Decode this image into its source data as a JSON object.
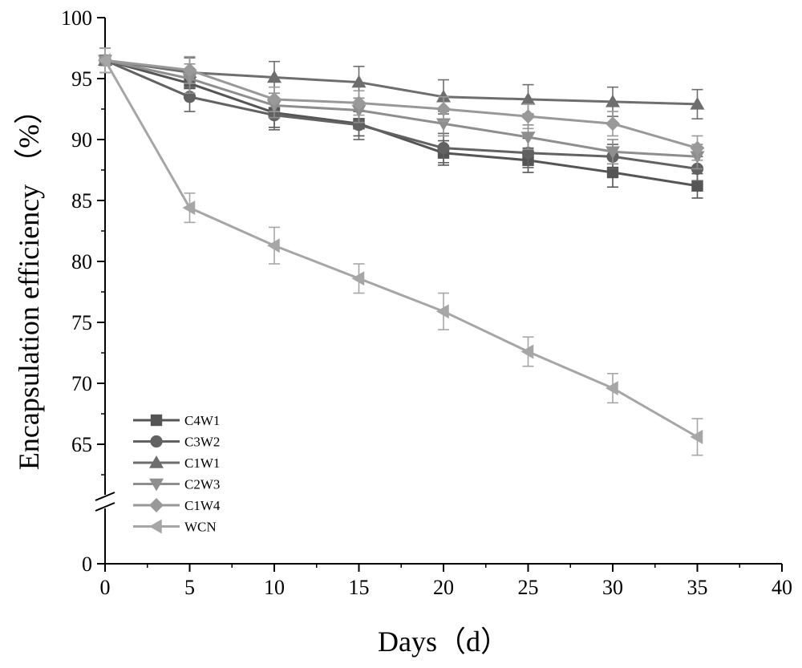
{
  "chart_data": {
    "type": "line",
    "xlabel": "Days（d）",
    "ylabel": "Encapsulation efficiency （%）",
    "xlim": [
      0,
      40
    ],
    "ylim": [
      0,
      100
    ],
    "y_axis_break": [
      0,
      60
    ],
    "x_ticks": [
      "0",
      "5",
      "10",
      "15",
      "20",
      "25",
      "30",
      "35",
      "40"
    ],
    "y_ticks": [
      "0",
      "65",
      "70",
      "75",
      "80",
      "85",
      "90",
      "95",
      "100"
    ],
    "grid": false,
    "legend_position": "bottom-left",
    "x": [
      0,
      5,
      10,
      15,
      20,
      25,
      30,
      35
    ],
    "series": [
      {
        "name": "C4W1",
        "marker": "square",
        "color": "#555555",
        "values": [
          96.5,
          94.6,
          92.2,
          91.3,
          88.9,
          88.3,
          87.3,
          86.2
        ],
        "errors": [
          1.0,
          1.0,
          1.2,
          1.0,
          1.0,
          1.0,
          1.2,
          1.0
        ]
      },
      {
        "name": "C3W2",
        "marker": "circle",
        "color": "#626262",
        "values": [
          96.5,
          93.5,
          92.0,
          91.2,
          89.3,
          88.9,
          88.6,
          87.6
        ],
        "errors": [
          1.0,
          1.2,
          1.2,
          1.2,
          1.2,
          1.2,
          1.0,
          1.0
        ]
      },
      {
        "name": "C1W1",
        "marker": "triangle-up",
        "color": "#6e6e6e",
        "values": [
          96.5,
          95.5,
          95.1,
          94.7,
          93.5,
          93.3,
          93.1,
          92.9
        ],
        "errors": [
          1.0,
          1.2,
          1.3,
          1.3,
          1.4,
          1.2,
          1.2,
          1.2
        ]
      },
      {
        "name": "C2W3",
        "marker": "triangle-down",
        "color": "#8e8e8e",
        "values": [
          96.5,
          95.0,
          92.8,
          92.4,
          91.3,
          90.2,
          89.0,
          88.6
        ],
        "errors": [
          1.0,
          1.2,
          1.0,
          1.0,
          1.0,
          1.0,
          1.0,
          1.0
        ]
      },
      {
        "name": "C1W4",
        "marker": "diamond",
        "color": "#999999",
        "values": [
          96.5,
          95.7,
          93.3,
          93.0,
          92.5,
          91.9,
          91.3,
          89.3
        ],
        "errors": [
          1.0,
          1.1,
          1.0,
          1.0,
          1.0,
          1.0,
          1.0,
          1.0
        ]
      },
      {
        "name": "WCN",
        "marker": "triangle-left",
        "color": "#a6a6a6",
        "values": [
          96.5,
          84.4,
          81.3,
          78.6,
          75.9,
          72.6,
          69.6,
          65.6
        ],
        "errors": [
          1.0,
          1.2,
          1.5,
          1.2,
          1.5,
          1.2,
          1.2,
          1.5
        ]
      }
    ]
  }
}
